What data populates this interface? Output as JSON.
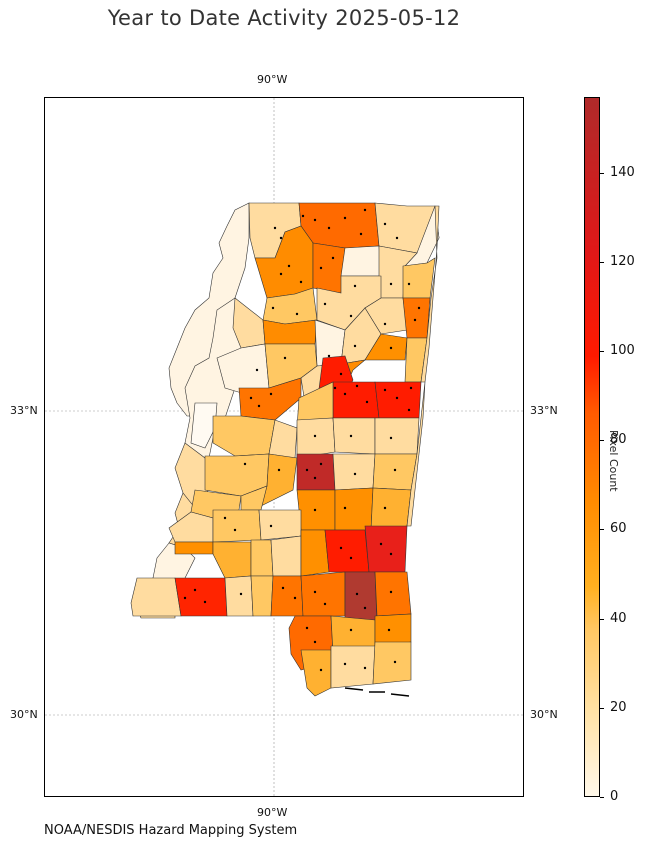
{
  "title": "Year to Date Activity 2025-05-12",
  "footer": "NOAA/NESDIS Hazard Mapping System",
  "map": {
    "region": "Mississippi",
    "gridlines": true,
    "lon_labels": [
      "90°W",
      "90°W"
    ],
    "lat_labels": {
      "left": [
        "33°N",
        "30°N"
      ],
      "right": [
        "33°N",
        "30°N"
      ]
    }
  },
  "colorbar": {
    "label": "Pixel Count",
    "ticks": [
      "140",
      "120",
      "100",
      "80",
      "60",
      "40",
      "20",
      "0"
    ],
    "range": [
      0,
      157
    ]
  },
  "colors": {
    "c0": "#fff4e2",
    "c1": "#ffdca0",
    "c2": "#ffc863",
    "c3": "#ffb131",
    "c4": "#ff9000",
    "c5": "#ff7400",
    "c6": "#ff4d00",
    "c7": "#ff1c00",
    "c8": "#e8201a",
    "c9": "#b02a2a"
  }
}
